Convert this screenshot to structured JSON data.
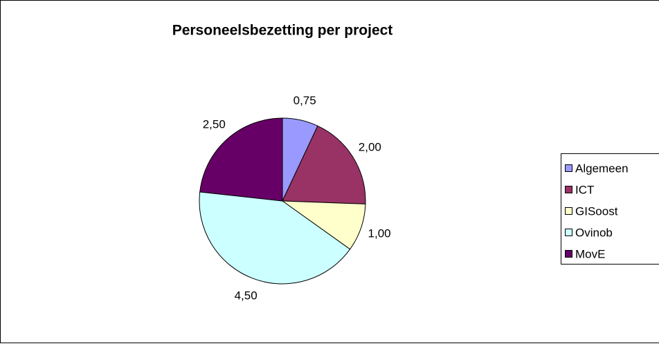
{
  "chart_data": {
    "type": "pie",
    "title": "Personeelsbezetting per project",
    "categories": [
      "Algemeen",
      "ICT",
      "GISoost",
      "Ovinob",
      "MovE"
    ],
    "values": [
      0.75,
      2.0,
      1.0,
      4.5,
      2.5
    ],
    "value_labels": [
      "0,75",
      "2,00",
      "1,00",
      "4,50",
      "2,50"
    ],
    "colors": [
      "#9999ff",
      "#993366",
      "#ffffcc",
      "#ccffff",
      "#660066"
    ],
    "legend": "right"
  }
}
